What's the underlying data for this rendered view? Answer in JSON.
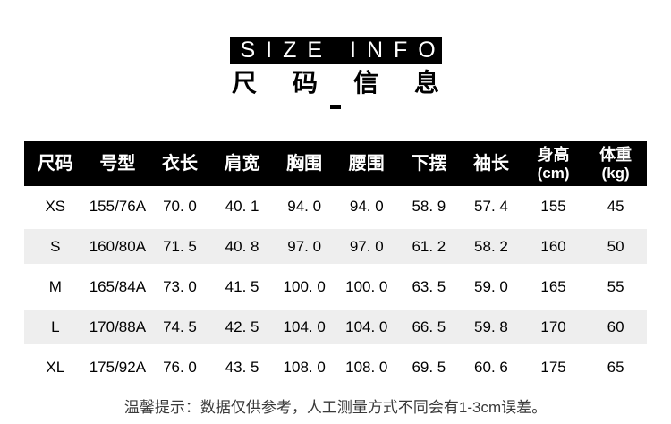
{
  "header": {
    "title_en": "SIZE INFO",
    "title_cn": "尺码信息"
  },
  "table": {
    "headers": [
      {
        "label": "尺码"
      },
      {
        "label": "号型"
      },
      {
        "label": "衣长"
      },
      {
        "label": "肩宽"
      },
      {
        "label": "胸围"
      },
      {
        "label": "腰围"
      },
      {
        "label": "下摆"
      },
      {
        "label": "袖长"
      },
      {
        "label": "身高",
        "sub": "(cm)"
      },
      {
        "label": "体重",
        "sub": "(kg)"
      }
    ],
    "rows": [
      [
        "XS",
        "155/76A",
        "70. 0",
        "40. 1",
        "94. 0",
        "94. 0",
        "58. 9",
        "57. 4",
        "155",
        "45"
      ],
      [
        "S",
        "160/80A",
        "71. 5",
        "40. 8",
        "97. 0",
        "97. 0",
        "61. 2",
        "58. 2",
        "160",
        "50"
      ],
      [
        "M",
        "165/84A",
        "73. 0",
        "41. 5",
        "100. 0",
        "100. 0",
        "63. 5",
        "59. 0",
        "165",
        "55"
      ],
      [
        "L",
        "170/88A",
        "74. 5",
        "42. 5",
        "104. 0",
        "104. 0",
        "66. 5",
        "59. 8",
        "170",
        "60"
      ],
      [
        "XL",
        "175/92A",
        "76. 0",
        "43. 5",
        "108. 0",
        "108. 0",
        "69. 5",
        "60. 6",
        "175",
        "65"
      ]
    ]
  },
  "footer": {
    "note": "温馨提示：数据仅供参考，人工测量方式不同会有1-3cm误差。"
  },
  "colors": {
    "header_bg": "#000000",
    "stripe_bg": "#eeeeee",
    "title_bg": "#000000",
    "text": "#000000"
  }
}
